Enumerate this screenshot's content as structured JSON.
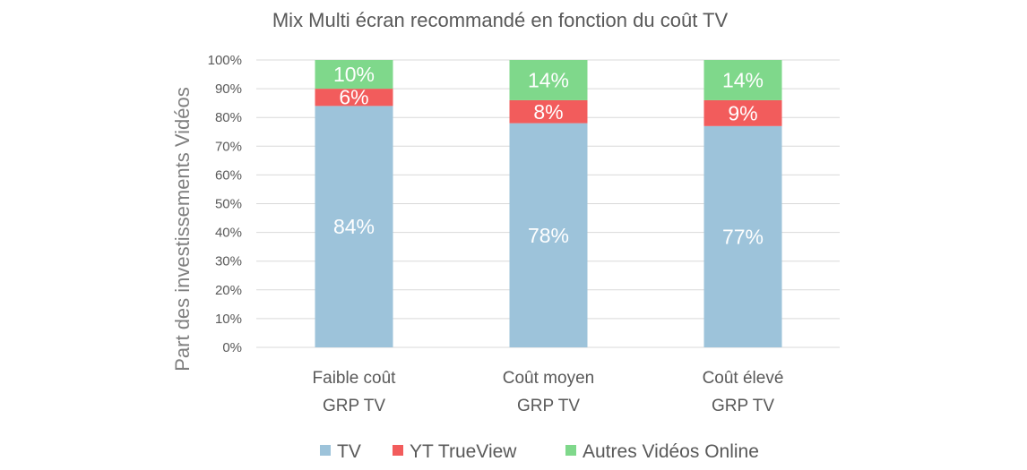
{
  "chart_data": {
    "type": "bar",
    "stacked": true,
    "title": "Mix Multi écran recommandé en fonction du coût TV",
    "ylabel": "Part des investissements Vidéos",
    "xlabel": "",
    "ylim": [
      0,
      100
    ],
    "yticks": [
      "0%",
      "10%",
      "20%",
      "30%",
      "40%",
      "50%",
      "60%",
      "70%",
      "80%",
      "90%",
      "100%"
    ],
    "categories": [
      [
        "Faible coût",
        "GRP TV"
      ],
      [
        "Coût moyen",
        "GRP TV"
      ],
      [
        "Coût élevé",
        "GRP TV"
      ]
    ],
    "series": [
      {
        "name": "TV",
        "color": "#9dc3da",
        "values": [
          84,
          78,
          77
        ],
        "labels": [
          "84%",
          "78%",
          "77%"
        ]
      },
      {
        "name": "YT TrueView",
        "color": "#f25c5c",
        "values": [
          6,
          8,
          9
        ],
        "labels": [
          "6%",
          "8%",
          "9%"
        ]
      },
      {
        "name": "Autres Vidéos Online",
        "color": "#7fd88b",
        "values": [
          10,
          14,
          14
        ],
        "labels": [
          "10%",
          "14%",
          "14%"
        ]
      }
    ],
    "grid": true,
    "legend_position": "bottom"
  }
}
